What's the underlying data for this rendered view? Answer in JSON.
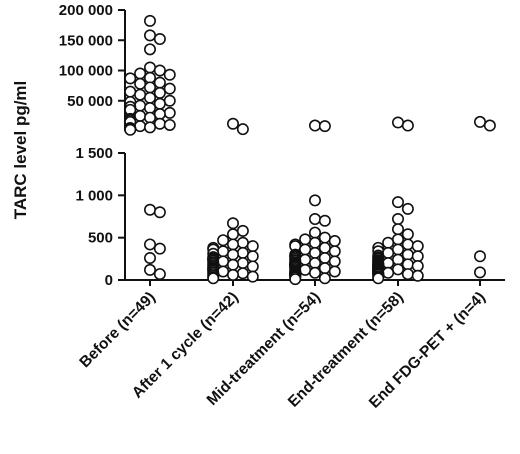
{
  "chart_data": {
    "type": "scatter",
    "ylabel": "TARC level pg/ml",
    "xlabel": "",
    "title": "",
    "y_axis_broken": true,
    "y_lower_segment": {
      "range": [
        0,
        1500
      ],
      "ticks": [
        0,
        500,
        1000,
        1500
      ],
      "tick_labels": [
        "0",
        "500",
        "1 000",
        "1 500"
      ]
    },
    "y_upper_segment": {
      "range": [
        0,
        200000
      ],
      "ticks": [
        50000,
        100000,
        150000,
        200000
      ],
      "tick_labels": [
        "50 000",
        "100 000",
        "150 000",
        "200 000"
      ]
    },
    "marker": "open-circle",
    "grid": false,
    "legend": "none",
    "categories": [
      "Before (n=49)",
      "After 1 cycle (n=42)",
      "Mid-treatment (n=54)",
      "End-treatment (n=58)",
      "End FDG-PET + (n=4)"
    ],
    "series": [
      {
        "category": "Before (n=49)",
        "values": [
          182000,
          158000,
          152000,
          135000,
          105000,
          100000,
          95000,
          93000,
          88000,
          87000,
          80000,
          78000,
          72000,
          70000,
          65000,
          63000,
          60000,
          55000,
          50000,
          48000,
          45000,
          42000,
          40000,
          38000,
          35000,
          30000,
          28000,
          25000,
          22000,
          20000,
          18000,
          15000,
          12000,
          10000,
          8000,
          6000,
          5000,
          4000,
          3500,
          3000,
          2500,
          2000,
          830,
          800,
          420,
          370,
          260,
          120,
          70
        ]
      },
      {
        "category": "After 1 cycle (n=42)",
        "values": [
          12000,
          3000,
          670,
          580,
          540,
          470,
          440,
          420,
          400,
          380,
          360,
          340,
          320,
          310,
          300,
          280,
          270,
          260,
          250,
          240,
          230,
          220,
          210,
          200,
          190,
          180,
          170,
          160,
          150,
          140,
          130,
          120,
          110,
          100,
          90,
          80,
          70,
          60,
          50,
          40,
          30,
          20
        ]
      },
      {
        "category": "Mid-treatment (n=54)",
        "values": [
          9000,
          8000,
          940,
          720,
          700,
          560,
          500,
          480,
          460,
          440,
          420,
          400,
          380,
          360,
          340,
          320,
          300,
          290,
          280,
          270,
          260,
          250,
          240,
          230,
          220,
          210,
          200,
          195,
          190,
          185,
          180,
          175,
          170,
          165,
          160,
          150,
          140,
          130,
          120,
          110,
          100,
          95,
          90,
          85,
          80,
          75,
          70,
          65,
          60,
          50,
          40,
          30,
          20,
          10
        ]
      },
      {
        "category": "End-treatment (n=58)",
        "values": [
          14000,
          9000,
          920,
          840,
          720,
          600,
          540,
          480,
          440,
          420,
          400,
          380,
          360,
          340,
          320,
          300,
          290,
          280,
          270,
          260,
          250,
          240,
          230,
          220,
          210,
          200,
          195,
          190,
          185,
          180,
          175,
          170,
          165,
          160,
          155,
          150,
          145,
          140,
          135,
          130,
          125,
          120,
          115,
          110,
          105,
          100,
          95,
          90,
          85,
          80,
          75,
          70,
          65,
          60,
          50,
          40,
          30,
          20
        ]
      },
      {
        "category": "End FDG-PET + (n=4)",
        "values": [
          15000,
          9000,
          280,
          90
        ]
      }
    ]
  }
}
